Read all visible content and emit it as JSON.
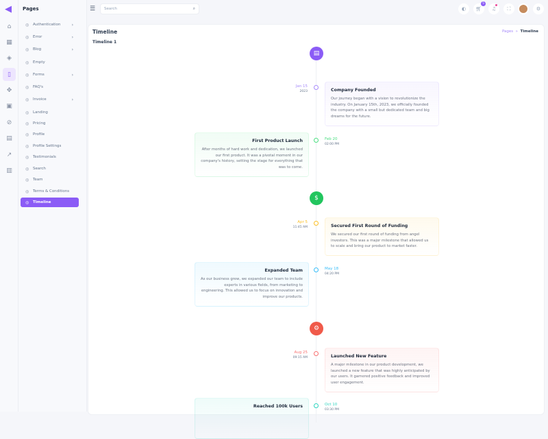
{
  "sidebar": {
    "title": "Pages",
    "items": [
      {
        "label": "Authentication",
        "icon": "shield-icon",
        "chevron": true
      },
      {
        "label": "Error",
        "icon": "info-icon",
        "chevron": true
      },
      {
        "label": "Blog",
        "icon": "browser-icon",
        "chevron": true
      },
      {
        "label": "Empty",
        "icon": "empty-icon",
        "chevron": false
      },
      {
        "label": "Forms",
        "icon": "file-icon",
        "chevron": true
      },
      {
        "label": "FAQ's",
        "icon": "question-icon",
        "chevron": false
      },
      {
        "label": "Invoice",
        "icon": "invoice-icon",
        "chevron": true
      },
      {
        "label": "Landing",
        "icon": "rocket-icon",
        "chevron": false
      },
      {
        "label": "Pricing",
        "icon": "dollar-icon",
        "chevron": false
      },
      {
        "label": "Profile",
        "icon": "user-icon",
        "chevron": false
      },
      {
        "label": "Profile Settings",
        "icon": "user-gear-icon",
        "chevron": false
      },
      {
        "label": "Testimonials",
        "icon": "chat-icon",
        "chevron": false
      },
      {
        "label": "Search",
        "icon": "search-icon",
        "chevron": false
      },
      {
        "label": "Team",
        "icon": "team-icon",
        "chevron": false
      },
      {
        "label": "Terms & Conditions",
        "icon": "file-text-icon",
        "chevron": false
      },
      {
        "label": "Timeline",
        "icon": "timeline-icon",
        "chevron": false,
        "active": true
      }
    ]
  },
  "header": {
    "search_placeholder": "Search",
    "cart_count": "5"
  },
  "page": {
    "title": "Timeline",
    "subtitle": "Timeline 1",
    "breadcrumb": [
      "Pages",
      "Timeline"
    ]
  },
  "colors": {
    "accent": "#8b5cf6"
  },
  "events": [
    {
      "date": "Jan 15",
      "time": "2023",
      "title": "Company Founded",
      "text": "Our journey began with a vision to revolutionize the industry. On January 15th, 2023, we officially founded the company with a small but dedicated team and big dreams for the future.",
      "color": "#a78bfa"
    },
    {
      "date": "Feb 20",
      "time": "02:00 PM",
      "title": "First Product Launch",
      "text": "After months of hard work and dedication, we launched our first product. It was a pivotal moment in our company's history, setting the stage for everything that was to come.",
      "color": "#4ade80"
    },
    {
      "date": "Apr 5",
      "time": "11:45 AM",
      "title": "Secured First Round of Funding",
      "text": "We secured our first round of funding from angel investors. This was a major milestone that allowed us to scale and bring our product to market faster.",
      "color": "#fbbf24"
    },
    {
      "date": "May 18",
      "time": "04:20 PM",
      "title": "Expanded Team",
      "text": "As our business grew, we expanded our team to include experts in various fields, from marketing to engineering. This allowed us to focus on innovation and improve our products.",
      "color": "#38bdf8"
    },
    {
      "date": "Aug 25",
      "time": "09:15 AM",
      "title": "Launched New Feature",
      "text": "A major milestone in our product development, we launched a new feature that was highly anticipated by our users. It garnered positive feedback and improved user engagement.",
      "color": "#f87171"
    },
    {
      "date": "Oct 10",
      "time": "03:30 PM",
      "title": "Reached 100k Users",
      "text": "",
      "color": "#2dd4bf"
    }
  ]
}
